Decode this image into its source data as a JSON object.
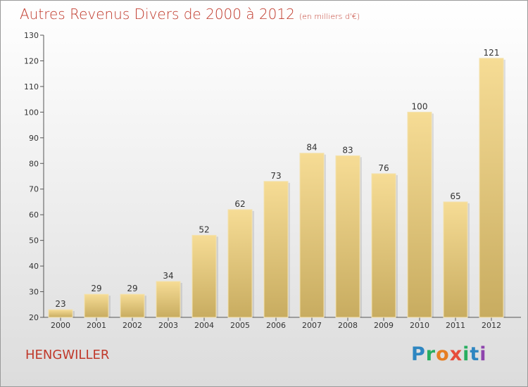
{
  "header": {
    "title": "Autres Revenus Divers de 2000 à 2012",
    "unit": "(en milliers d'€)"
  },
  "footer": {
    "commune": "HENGWILLER",
    "logo_letters": [
      "P",
      "r",
      "o",
      "x",
      "i",
      "t",
      "i"
    ],
    "logo_colors": [
      "#2e86c1",
      "#27ae60",
      "#e67e22",
      "#e74c3c",
      "#27ae60",
      "#2e86c1",
      "#8e44ad"
    ]
  },
  "colors": {
    "title": "#c0392b",
    "bar_top": "#f6dc95",
    "bar_bottom": "#c8ac60"
  },
  "chart_data": {
    "type": "bar",
    "title": "Autres Revenus Divers de 2000 à 2012",
    "subtitle": "(en milliers d'€)",
    "xlabel": "",
    "ylabel": "",
    "categories": [
      "2000",
      "2001",
      "2002",
      "2003",
      "2004",
      "2005",
      "2006",
      "2007",
      "2008",
      "2009",
      "2010",
      "2011",
      "2012"
    ],
    "values": [
      23,
      29,
      29,
      34,
      52,
      62,
      73,
      84,
      83,
      76,
      100,
      65,
      121
    ],
    "ylim": [
      20,
      130
    ],
    "yticks": [
      20,
      30,
      40,
      50,
      60,
      70,
      80,
      90,
      100,
      110,
      120,
      130
    ],
    "grid": false,
    "legend": "none"
  }
}
